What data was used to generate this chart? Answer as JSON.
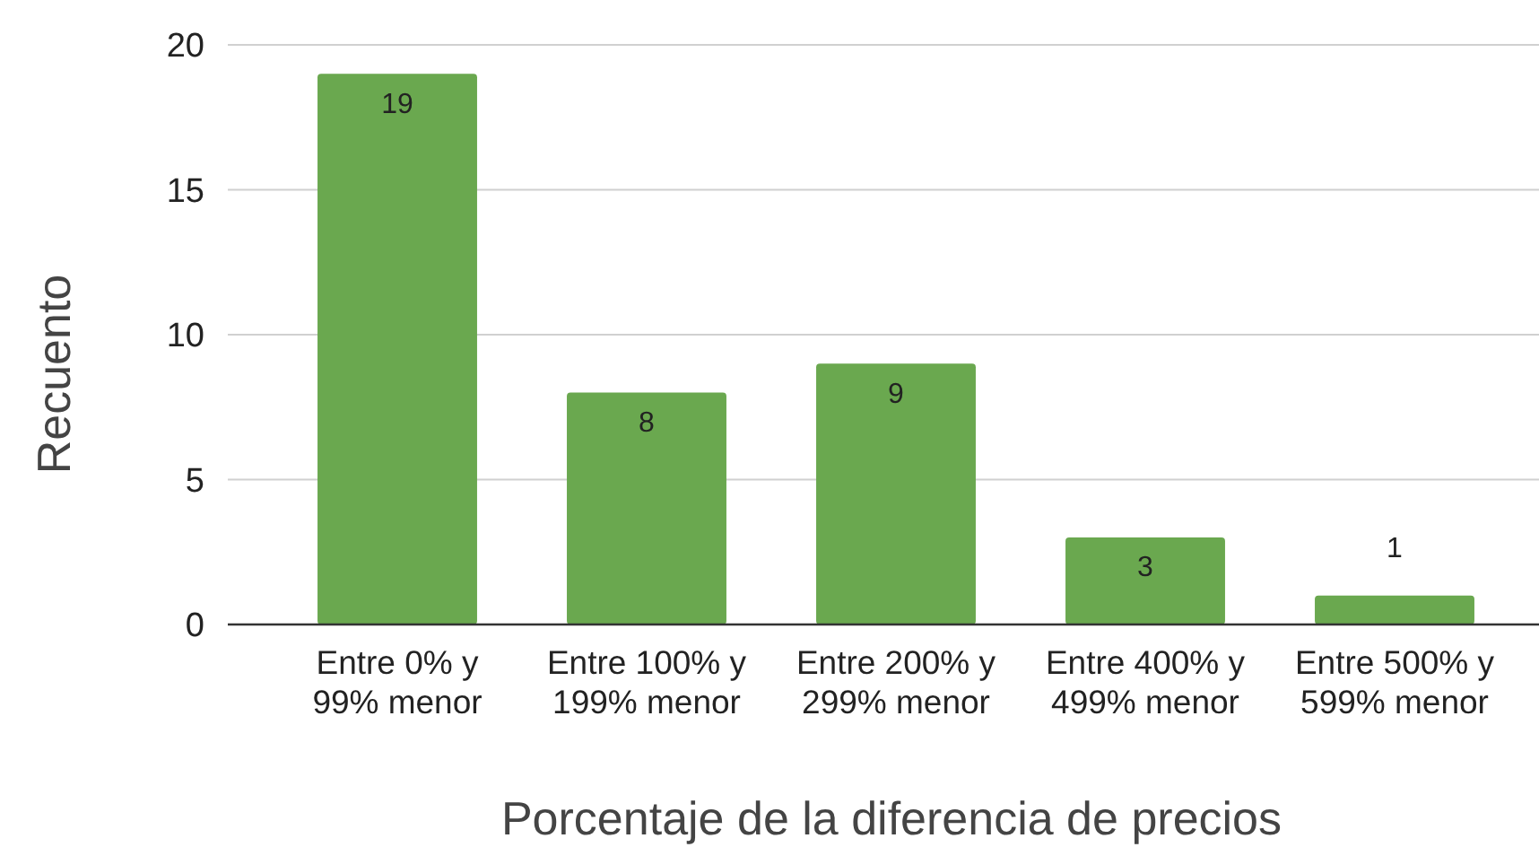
{
  "chart_data": {
    "type": "bar",
    "xlabel": "Porcentaje de la diferencia de precios",
    "ylabel": "Recuento",
    "categories": [
      "Entre 0% y 99% menor",
      "Entre 100% y 199% menor",
      "Entre 200% y 299% menor",
      "Entre 400% y 499% menor",
      "Entre 500% y 599% menor"
    ],
    "values": [
      19,
      8,
      9,
      3,
      1
    ],
    "color": "#6aa84f",
    "ylim": [
      0,
      20
    ],
    "yticks": [
      0,
      5,
      10,
      15,
      20
    ],
    "grid": "y",
    "data_labels": true
  }
}
